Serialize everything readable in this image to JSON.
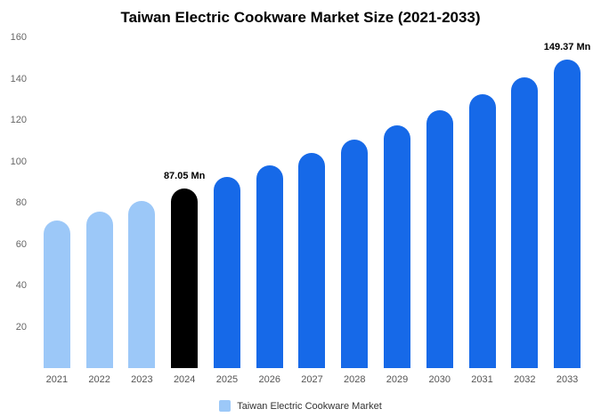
{
  "title": "Taiwan Electric Cookware Market Size (2021-2033)",
  "legend": {
    "label": "Taiwan Electric Cookware Market",
    "swatch_color": "#9CC8F8"
  },
  "colors": {
    "historical_bar": "#9CC8F8",
    "highlight_bar": "#000000",
    "forecast_bar": "#1669E8",
    "axis_text": "#666666",
    "background": "#FFFFFF"
  },
  "chart_data": {
    "type": "bar",
    "title": "Taiwan Electric Cookware Market Size (2021-2033)",
    "xlabel": "",
    "ylabel": "",
    "categories": [
      "2021",
      "2022",
      "2023",
      "2024",
      "2025",
      "2026",
      "2027",
      "2028",
      "2029",
      "2030",
      "2031",
      "2032",
      "2033"
    ],
    "values": [
      71.2,
      75.9,
      80.9,
      87.05,
      92.4,
      98.1,
      104.2,
      110.6,
      117.5,
      124.7,
      132.5,
      140.6,
      149.37
    ],
    "value_labels": [
      "",
      "",
      "",
      "87.05 Mn",
      "",
      "",
      "",
      "",
      "",
      "",
      "",
      "",
      "149.37 Mn"
    ],
    "bar_colors": [
      "#9CC8F8",
      "#9CC8F8",
      "#9CC8F8",
      "#000000",
      "#1669E8",
      "#1669E8",
      "#1669E8",
      "#1669E8",
      "#1669E8",
      "#1669E8",
      "#1669E8",
      "#1669E8",
      "#1669E8"
    ],
    "ylim": [
      0,
      160
    ],
    "yticks": [
      20,
      40,
      60,
      80,
      100,
      120,
      140,
      160
    ],
    "grid": false,
    "legend_position": "bottom",
    "legend_entries": [
      "Taiwan Electric Cookware Market"
    ]
  }
}
